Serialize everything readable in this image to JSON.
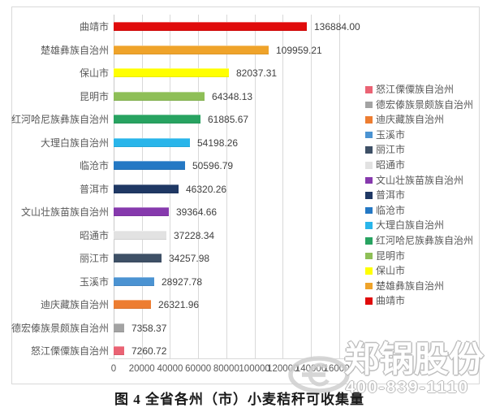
{
  "chart_data": {
    "type": "bar",
    "orientation": "horizontal",
    "title": "图 4 全省各州（市）小麦秸秆可收集量",
    "xlabel": "",
    "ylabel": "",
    "xlim": [
      0,
      160000
    ],
    "grid": "vertical-on",
    "legend_position": "right",
    "x_ticks": [
      "0",
      "20000",
      "40000",
      "60000",
      "80000",
      "100000",
      "120000",
      "140000",
      "160000"
    ],
    "bars": [
      {
        "label": "曲靖市",
        "value": 136884.0,
        "value_label": "136884.00",
        "color": "#e00b0b"
      },
      {
        "label": "楚雄彝族自治州",
        "value": 109959.21,
        "value_label": "109959.21",
        "color": "#efa32a"
      },
      {
        "label": "保山市",
        "value": 82037.31,
        "value_label": "82037.31",
        "color": "#ffff00"
      },
      {
        "label": "昆明市",
        "value": 64348.13,
        "value_label": "64348.13",
        "color": "#8ebf57"
      },
      {
        "label": "红河哈尼族彝族自治州",
        "value": 61885.67,
        "value_label": "61885.67",
        "color": "#28a361"
      },
      {
        "label": "大理白族自治州",
        "value": 54198.26,
        "value_label": "54198.26",
        "color": "#29b5ea"
      },
      {
        "label": "临沧市",
        "value": 50596.79,
        "value_label": "50596.79",
        "color": "#2478c4"
      },
      {
        "label": "普洱市",
        "value": 46320.26,
        "value_label": "46320.26",
        "color": "#1f3864"
      },
      {
        "label": "文山壮族苗族自治州",
        "value": 39364.66,
        "value_label": "39364.66",
        "color": "#8639ad"
      },
      {
        "label": "昭通市",
        "value": 37228.34,
        "value_label": "37228.34",
        "color": "#e2e2e2"
      },
      {
        "label": "丽江市",
        "value": 34257.98,
        "value_label": "34257.98",
        "color": "#3e5066"
      },
      {
        "label": "玉溪市",
        "value": 28927.78,
        "value_label": "28927.78",
        "color": "#4b93d2"
      },
      {
        "label": "迪庆藏族自治州",
        "value": 26321.96,
        "value_label": "26321.96",
        "color": "#ed7d31"
      },
      {
        "label": "德宏傣族景颇族自治州",
        "value": 7358.37,
        "value_label": "7358.37",
        "color": "#a3a3a3"
      },
      {
        "label": "怒江傈僳族自治州",
        "value": 7260.72,
        "value_label": "7260.72",
        "color": "#ea6374"
      }
    ],
    "legend": [
      {
        "label": "怒江傈僳族自治州",
        "color": "#ea6374"
      },
      {
        "label": "德宏傣族景颇族自治州",
        "color": "#a3a3a3"
      },
      {
        "label": "迪庆藏族自治州",
        "color": "#ed7d31"
      },
      {
        "label": "玉溪市",
        "color": "#4b93d2"
      },
      {
        "label": "丽江市",
        "color": "#3e5066"
      },
      {
        "label": "昭通市",
        "color": "#e2e2e2"
      },
      {
        "label": "文山壮族苗族自治州",
        "color": "#8639ad"
      },
      {
        "label": "普洱市",
        "color": "#1f3864"
      },
      {
        "label": "临沧市",
        "color": "#2478c4"
      },
      {
        "label": "大理白族自治州",
        "color": "#29b5ea"
      },
      {
        "label": "红河哈尼族彝族自治州",
        "color": "#28a361"
      },
      {
        "label": "昆明市",
        "color": "#8ebf57"
      },
      {
        "label": "保山市",
        "color": "#ffff00"
      },
      {
        "label": "楚雄彝族自治州",
        "color": "#efa32a"
      },
      {
        "label": "曲靖市",
        "color": "#e00b0b"
      }
    ]
  },
  "watermark": {
    "company": "郑锅股份",
    "phone": "400-839-1110",
    "logo": "zhengguo-ellipse-logo"
  }
}
